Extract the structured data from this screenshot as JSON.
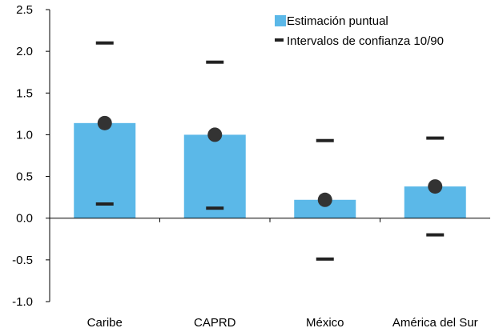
{
  "chart_data": {
    "type": "bar",
    "categories": [
      "Caribe",
      "CAPRD",
      "México",
      "América del Sur"
    ],
    "series": [
      {
        "name": "Estimación puntual",
        "values": [
          1.14,
          1.0,
          0.22,
          0.38
        ]
      },
      {
        "name": "Intervalos de confianza 10/90",
        "lower": [
          0.17,
          0.12,
          -0.49,
          -0.2
        ],
        "upper": [
          2.1,
          1.87,
          0.93,
          0.96
        ]
      }
    ],
    "ylim": [
      -1.0,
      2.5
    ],
    "yticks": [
      "-1.0",
      "-0.5",
      "0.0",
      "0.5",
      "1.0",
      "1.5",
      "2.0",
      "2.5"
    ],
    "ytick_values": [
      -1.0,
      -0.5,
      0.0,
      0.5,
      1.0,
      1.5,
      2.0,
      2.5
    ],
    "grid": false,
    "legend_position": "top-right",
    "colors": {
      "bar": "#5bb8e8",
      "point": "#333333",
      "interval": "#222222",
      "axis": "#000000"
    }
  }
}
